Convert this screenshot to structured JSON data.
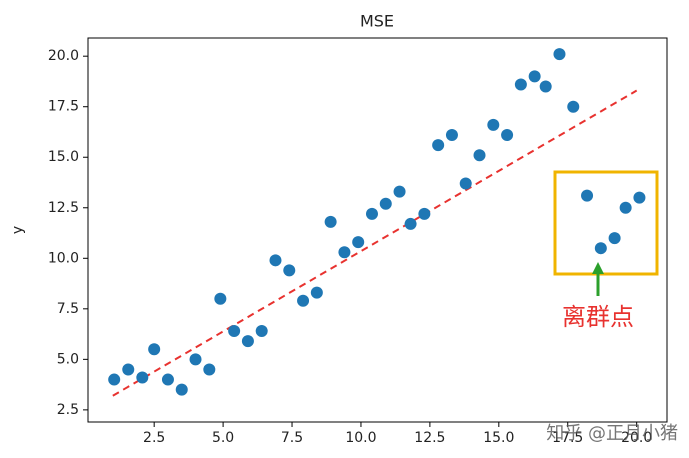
{
  "chart_data": {
    "type": "scatter",
    "title": "MSE",
    "y_label": "y",
    "x": [
      1.05,
      1.56,
      2.07,
      2.5,
      3.0,
      3.5,
      4.0,
      4.5,
      4.9,
      5.4,
      5.9,
      6.4,
      6.9,
      7.4,
      7.9,
      8.4,
      8.9,
      9.4,
      9.9,
      10.4,
      10.9,
      11.4,
      11.8,
      12.3,
      12.8,
      13.3,
      13.8,
      14.3,
      14.8,
      15.3,
      15.8,
      16.3,
      16.7,
      17.2,
      17.7,
      18.2,
      18.7,
      19.2,
      19.6,
      20.1
    ],
    "values": [
      4.0,
      4.5,
      4.1,
      5.5,
      4.0,
      3.5,
      5.0,
      4.5,
      8.0,
      6.4,
      5.9,
      6.4,
      9.9,
      9.4,
      7.9,
      8.3,
      11.8,
      10.3,
      10.8,
      12.2,
      12.7,
      13.3,
      11.7,
      12.2,
      15.6,
      16.1,
      13.7,
      15.1,
      16.6,
      16.1,
      18.6,
      19.0,
      18.5,
      20.1,
      17.5,
      13.1,
      10.5,
      11.0,
      12.5,
      13.0
    ],
    "color": "#1f77b4",
    "fit_line": {
      "x": [
        1,
        20
      ],
      "values": [
        3.2,
        18.3
      ],
      "color": "#e8322f"
    },
    "xlim": [
      0.1,
      21.1
    ],
    "ylim": [
      1.9,
      20.9
    ],
    "xticks": [
      2.5,
      {
        "value": 5,
        "label": "5.0"
      },
      7.5,
      {
        "value": 10,
        "label": "10.0"
      },
      12.5,
      {
        "value": 15,
        "label": "15.0"
      },
      17.5,
      {
        "value": 20,
        "label": "20.0"
      }
    ],
    "yticks": [
      2.5,
      {
        "value": 5,
        "label": "5.0"
      },
      7.5,
      {
        "value": 10,
        "label": "10.0"
      },
      12.5,
      {
        "value": 15,
        "label": "15.0"
      },
      17.5,
      {
        "value": 20,
        "label": "20.0"
      }
    ],
    "annotation": "离群点",
    "watermark": "知乎 @正月小猪"
  }
}
